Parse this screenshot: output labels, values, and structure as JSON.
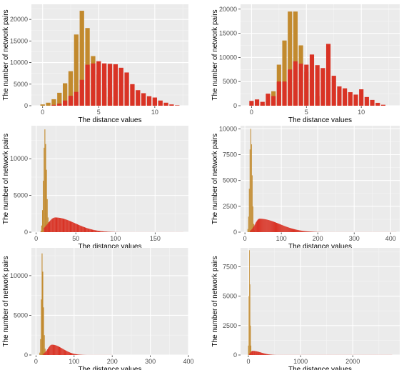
{
  "chart_data": [
    {
      "type": "bar",
      "xlabel": "The distance values",
      "ylabel": "The number of network pairs",
      "xlim": [
        -1,
        13
      ],
      "ylim": [
        0,
        23500
      ],
      "xticks": [
        0,
        5,
        10
      ],
      "yticks": [
        0,
        5000,
        10000,
        15000,
        20000
      ],
      "grid": true,
      "series": [
        {
          "color": "#c28a2e",
          "x": [
            0,
            0.5,
            1,
            1.5,
            2,
            2.5,
            3,
            3.5,
            4,
            4.5,
            5,
            5.5,
            6,
            6.5,
            7
          ],
          "values": [
            300,
            700,
            1500,
            3000,
            5200,
            8000,
            16500,
            22000,
            18000,
            11500,
            7200,
            4200,
            2000,
            700,
            200
          ]
        },
        {
          "color": "#d93325",
          "x": [
            1,
            1.5,
            2,
            2.5,
            3,
            3.5,
            4,
            4.5,
            5,
            5.5,
            6,
            6.5,
            7,
            7.5,
            8,
            8.5,
            9,
            9.5,
            10,
            10.5,
            11,
            11.5,
            12
          ],
          "values": [
            200,
            500,
            1200,
            2300,
            3200,
            6000,
            9500,
            9800,
            10300,
            9800,
            9700,
            9600,
            8800,
            7700,
            5000,
            3600,
            2900,
            2200,
            1900,
            1200,
            700,
            300,
            100
          ]
        }
      ]
    },
    {
      "type": "bar",
      "xlabel": "The distance values",
      "ylabel": "The number of network pairs",
      "xlim": [
        -1,
        13.5
      ],
      "ylim": [
        0,
        21000
      ],
      "xticks": [
        0,
        5,
        10
      ],
      "yticks": [
        0,
        5000,
        10000,
        15000,
        20000
      ],
      "grid": true,
      "series": [
        {
          "color": "#c28a2e",
          "x": [
            1,
            1.5,
            2,
            2.5,
            3,
            3.5,
            4,
            4.5,
            5,
            5.5,
            6
          ],
          "values": [
            300,
            1000,
            3000,
            8500,
            13500,
            19500,
            19500,
            12500,
            7000,
            5500,
            2000
          ]
        },
        {
          "color": "#d93325",
          "x": [
            0,
            0.5,
            1,
            1.5,
            2,
            2.5,
            3,
            3.5,
            4,
            4.5,
            5,
            5.5,
            6,
            6.5,
            7,
            7.5,
            8,
            8.5,
            9,
            9.5,
            10,
            10.5,
            11,
            11.5,
            12
          ],
          "values": [
            1000,
            1300,
            800,
            2500,
            2000,
            5000,
            5000,
            7500,
            9200,
            8700,
            8500,
            10600,
            8400,
            7800,
            12800,
            6200,
            4000,
            3600,
            2800,
            2300,
            3400,
            1800,
            1200,
            600,
            200
          ]
        }
      ]
    },
    {
      "type": "bar",
      "xlabel": "The distance values",
      "ylabel": "The number of network pairs",
      "xlim": [
        -6,
        192
      ],
      "ylim": [
        0,
        14500
      ],
      "xticks": [
        0,
        50,
        100,
        150
      ],
      "yticks": [
        0,
        5000,
        10000
      ],
      "grid": true,
      "series": [
        {
          "color": "#c28a2e",
          "x": [
            6,
            7,
            8,
            9,
            10,
            11,
            12,
            13,
            14,
            15,
            16,
            17
          ],
          "values": [
            200,
            900,
            3000,
            7000,
            11500,
            14000,
            12000,
            8500,
            4500,
            2000,
            700,
            200
          ],
          "bar_width": 1
        },
        {
          "color": "#d93325",
          "dist_range": [
            10,
            185
          ],
          "dist_peak_x": 24,
          "dist_peak_y": 2000,
          "dist_left_spread": 9,
          "dist_right_spread": 25,
          "bar_width": 1
        }
      ]
    },
    {
      "type": "bar",
      "xlabel": "The distance values",
      "ylabel": "The number of network pairs",
      "xlim": [
        -12,
        425
      ],
      "ylim": [
        0,
        10300
      ],
      "xticks": [
        0,
        100,
        200,
        300,
        400
      ],
      "yticks": [
        0,
        2500,
        5000,
        7500,
        10000
      ],
      "grid": true,
      "series": [
        {
          "color": "#c28a2e",
          "x": [
            8,
            10,
            12,
            14,
            16,
            18,
            20,
            22,
            24,
            26
          ],
          "values": [
            300,
            1500,
            4200,
            8000,
            10000,
            8500,
            5500,
            2500,
            800,
            200
          ],
          "bar_width": 2
        },
        {
          "color": "#d93325",
          "dist_range": [
            15,
            415
          ],
          "dist_peak_x": 40,
          "dist_peak_y": 1300,
          "dist_left_spread": 12,
          "dist_right_spread": 55,
          "bar_width": 2
        }
      ]
    },
    {
      "type": "bar",
      "xlabel": "The distance values",
      "ylabel": "The number of network pairs",
      "xlim": [
        -12,
        400
      ],
      "ylim": [
        0,
        13500
      ],
      "xticks": [
        0,
        100,
        200,
        300,
        400
      ],
      "yticks": [
        0,
        5000,
        10000
      ],
      "grid": true,
      "series": [
        {
          "color": "#c28a2e",
          "x": [
            10,
            12,
            14,
            16,
            18,
            20,
            22,
            24,
            26
          ],
          "values": [
            300,
            2000,
            7000,
            12800,
            10500,
            6000,
            2500,
            800,
            200
          ],
          "bar_width": 2
        },
        {
          "color": "#d93325",
          "dist_range": [
            20,
            200
          ],
          "dist_peak_x": 42,
          "dist_peak_y": 1300,
          "dist_left_spread": 11,
          "dist_right_spread": 28,
          "bar_width": 2
        }
      ]
    },
    {
      "type": "bar",
      "xlabel": "The distance values",
      "ylabel": "The number of network pairs",
      "xlim": [
        -150,
        2900
      ],
      "ylim": [
        0,
        9100
      ],
      "xticks": [
        0,
        1000,
        2000
      ],
      "yticks": [
        0,
        2500,
        5000,
        7500
      ],
      "grid": true,
      "series": [
        {
          "color": "#c28a2e",
          "x": [
            0,
            10,
            20,
            30,
            40,
            50,
            60
          ],
          "values": [
            800,
            5000,
            8900,
            6000,
            2500,
            800,
            200
          ],
          "bar_width": 10
        },
        {
          "color": "#d93325",
          "dist_range": [
            20,
            2750
          ],
          "dist_peak_x": 80,
          "dist_peak_y": 350,
          "dist_left_spread": 40,
          "dist_right_spread": 160,
          "bar_width": 10
        }
      ]
    }
  ]
}
